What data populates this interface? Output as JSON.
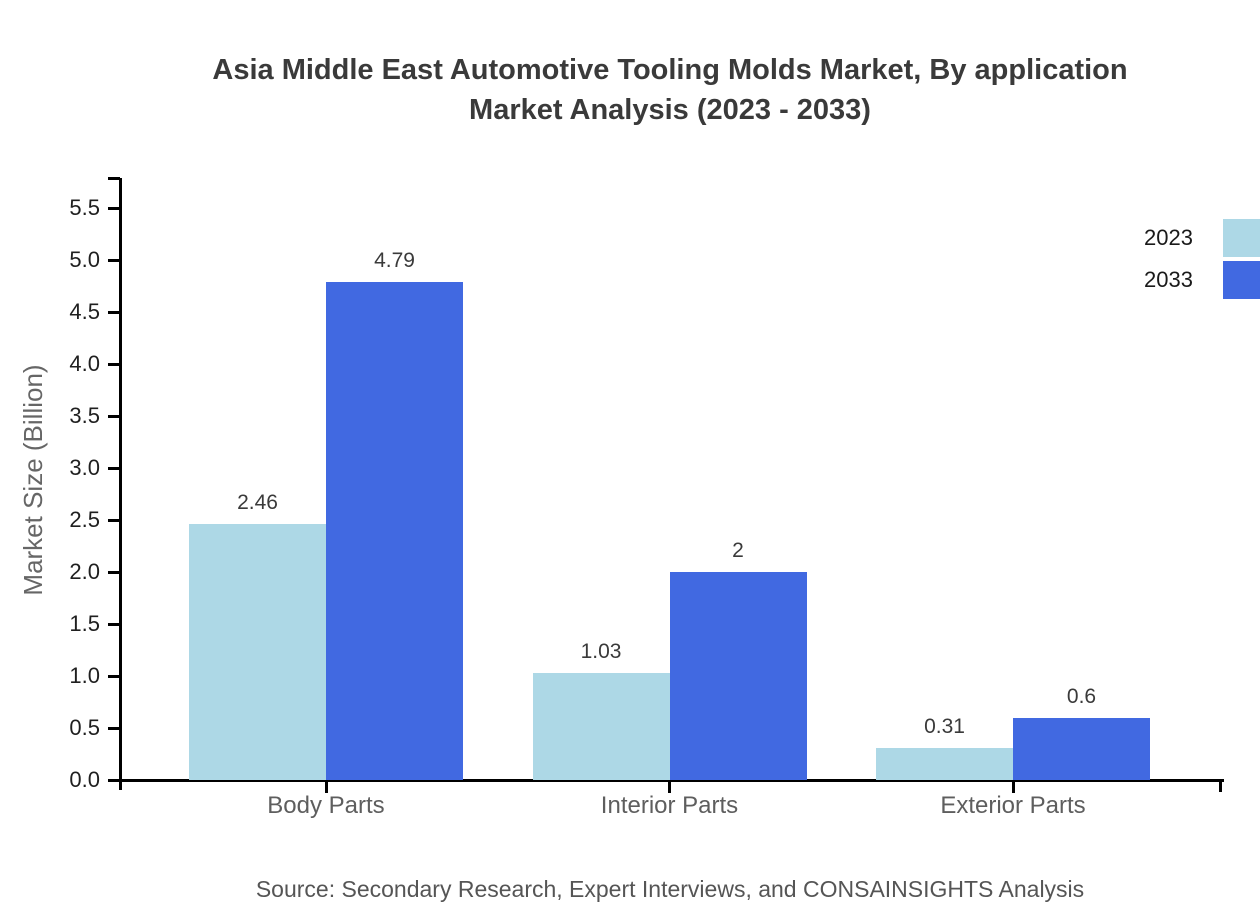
{
  "page": {
    "title_lines": [
      "Asia Middle East Automotive Tooling Molds Market, By application",
      "Market Analysis (2023 - 2033)"
    ],
    "source": "Source: Secondary Research, Expert Interviews, and CONSAINSIGHTS Analysis"
  },
  "chart_data": {
    "type": "bar",
    "title": "Asia Middle East Automotive Tooling Molds Market, By application Market Analysis (2023 - 2033)",
    "categories": [
      "Body Parts",
      "Interior Parts",
      "Exterior Parts"
    ],
    "series": [
      {
        "name": "2023",
        "color": "#ADD8E6",
        "values": [
          2.46,
          1.03,
          0.31
        ],
        "labels": [
          "2.46",
          "1.03",
          "0.31"
        ]
      },
      {
        "name": "2033",
        "color": "#4169E1",
        "values": [
          4.79,
          2.0,
          0.6
        ],
        "labels": [
          "4.79",
          "2",
          "0.6"
        ]
      }
    ],
    "xlabel": "",
    "ylabel": "Market Size (Billion)",
    "ylim": [
      0,
      5.5
    ],
    "y_ticks": [
      "0.0",
      "0.5",
      "1.0",
      "1.5",
      "2.0",
      "2.5",
      "3.0",
      "3.5",
      "4.0",
      "4.5",
      "5.0",
      "5.5"
    ],
    "grid": false,
    "legend_position": "top-right",
    "axis_color": "#000000",
    "colors": {
      "title_text": "#3a3a3a",
      "tick_text": "#1f1f1f",
      "category_text": "#5e5e5e",
      "value_text": "#3a3a3a",
      "axis_label_text": "#666666",
      "source_text": "#555555"
    }
  }
}
